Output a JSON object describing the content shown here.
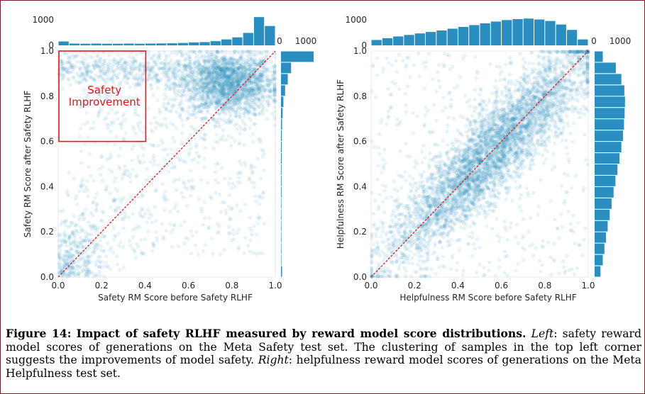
{
  "caption": {
    "label": "Figure 14:",
    "title": "Impact of safety RLHF measured by reward model score distributions.",
    "left_word": "Left",
    "left_text": ": safety reward model scores of generations on the Meta Safety test set.  The clustering of samples in the top left corner suggests the improvements of model safety.",
    "right_word": "Right",
    "right_text": ": helpfulness reward model scores of generations on the Meta Helpfulness test set."
  },
  "colors": {
    "point": "#2a93c2",
    "bar": "#2a8fc0",
    "diagonal": "#e31a1c",
    "annotation": "#e8141b"
  },
  "chart_data": [
    {
      "type": "scatter",
      "xlabel": "Safety RM Score before Safety RLHF",
      "ylabel": "Safety RM Score after Safety RLHF",
      "xlim": [
        0,
        1
      ],
      "ylim": [
        0,
        1
      ],
      "x_ticks": [
        "0.0",
        "0.2",
        "0.4",
        "0.6",
        "0.8",
        "1.0"
      ],
      "y_ticks": [
        "0.0",
        "0.2",
        "0.4",
        "0.6",
        "0.8",
        "1.0"
      ],
      "reference_line": "y = x",
      "annotation": {
        "text_lines": [
          "Safety",
          "Improvement"
        ],
        "box": {
          "x0": 0.0,
          "x1": 0.4,
          "y0": 0.6,
          "y1": 1.0
        }
      },
      "marginal_x": {
        "ticks": [
          "0",
          "1000"
        ],
        "bin_width": 0.05,
        "counts": [
          130,
          60,
          55,
          60,
          55,
          55,
          60,
          55,
          60,
          65,
          70,
          80,
          100,
          110,
          140,
          200,
          270,
          420,
          950,
          650
        ]
      },
      "marginal_y": {
        "ticks": [
          "0",
          "1000"
        ],
        "bin_width": 0.05,
        "counts": [
          40,
          15,
          15,
          15,
          15,
          15,
          15,
          20,
          20,
          20,
          25,
          25,
          30,
          40,
          60,
          90,
          150,
          250,
          370,
          1200
        ]
      }
    },
    {
      "type": "scatter",
      "xlabel": "Helpfulness RM Score before Safety RLHF",
      "ylabel": "Helpfulness RM Score after Safety RLHF",
      "xlim": [
        0,
        1
      ],
      "ylim": [
        0,
        1
      ],
      "x_ticks": [
        "0.0",
        "0.2",
        "0.4",
        "0.6",
        "0.8",
        "1.0"
      ],
      "y_ticks": [
        "0.0",
        "0.2",
        "0.4",
        "0.6",
        "0.8",
        "1.0"
      ],
      "reference_line": "y = x",
      "marginal_x": {
        "ticks": [
          "0",
          "1000"
        ],
        "bin_width": 0.05,
        "counts": [
          180,
          240,
          300,
          350,
          400,
          450,
          500,
          560,
          620,
          680,
          740,
          800,
          850,
          880,
          900,
          870,
          820,
          700,
          520,
          200
        ]
      },
      "marginal_y": {
        "ticks": [
          "0",
          "1000"
        ],
        "bin_width": 0.05,
        "counts": [
          180,
          250,
          300,
          350,
          400,
          460,
          520,
          580,
          640,
          700,
          760,
          820,
          870,
          900,
          920,
          930,
          910,
          820,
          650,
          250
        ]
      }
    }
  ]
}
